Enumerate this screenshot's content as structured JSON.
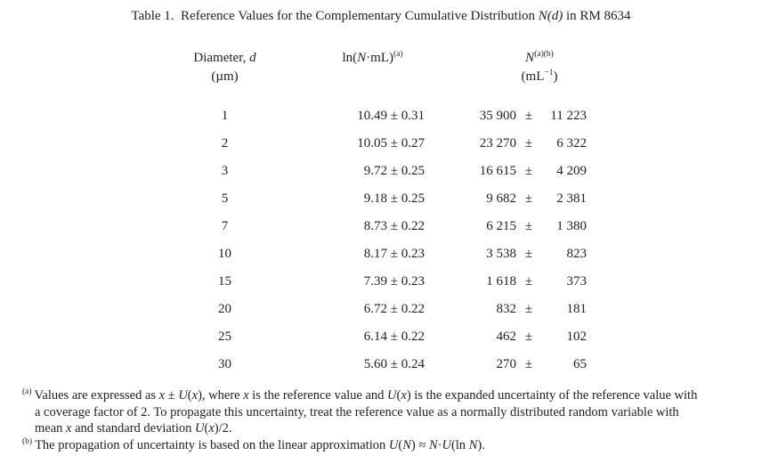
{
  "page": {
    "background_color": "#ffffff",
    "text_color": "#1f1f1f"
  },
  "title": {
    "text": "Table 1.  Reference Values for the Complementary Cumulative Distribution N(d) in RM 8634",
    "segments": [
      {
        "t": "Table 1.  Reference Values for the Complementary Cumulative Distribution "
      },
      {
        "t": "N(d)",
        "i": true
      },
      {
        "t": " in RM 8634"
      }
    ]
  },
  "table": {
    "pm_symbol": "±",
    "headers": {
      "diameter": {
        "line1": [
          {
            "t": "Diameter, "
          },
          {
            "t": "d",
            "i": true
          }
        ],
        "line2": [
          {
            "t": "(µm)"
          }
        ]
      },
      "ln_n": {
        "line1": [
          {
            "t": "ln("
          },
          {
            "t": "N",
            "i": true
          },
          {
            "t": "·mL)"
          },
          {
            "t": "(a)",
            "sup": true
          }
        ]
      },
      "n": {
        "line1": [
          {
            "t": "N",
            "i": true
          },
          {
            "t": "(a)(b)",
            "sup": true
          }
        ],
        "line2": [
          {
            "t": "(mL"
          },
          {
            "t": "−1",
            "sup": true
          },
          {
            "t": ")"
          }
        ]
      }
    },
    "rows": [
      {
        "d": "1",
        "ln": "10.49 ± 0.31",
        "n": "35 900",
        "u": "11 223"
      },
      {
        "d": "2",
        "ln": "10.05 ± 0.27",
        "n": "23 270",
        "u": "6 322"
      },
      {
        "d": "3",
        "ln": "9.72 ± 0.25",
        "n": "16 615",
        "u": "4 209"
      },
      {
        "d": "5",
        "ln": "9.18 ± 0.25",
        "n": "9 682",
        "u": "2 381"
      },
      {
        "d": "7",
        "ln": "8.73 ± 0.22",
        "n": "6 215",
        "u": "1 380"
      },
      {
        "d": "10",
        "ln": "8.17 ± 0.23",
        "n": "3 538",
        "u": "823"
      },
      {
        "d": "15",
        "ln": "7.39 ± 0.23",
        "n": "1 618",
        "u": "373"
      },
      {
        "d": "20",
        "ln": "6.72 ± 0.22",
        "n": "832",
        "u": "181"
      },
      {
        "d": "25",
        "ln": "6.14 ± 0.22",
        "n": "462",
        "u": "102"
      },
      {
        "d": "30",
        "ln": "5.60 ± 0.24",
        "n": "270",
        "u": "65"
      }
    ]
  },
  "footnotes": [
    {
      "marker": "(a)",
      "lines": [
        [
          {
            "t": "Values are expressed as "
          },
          {
            "t": "x",
            "i": true
          },
          {
            "t": " ± "
          },
          {
            "t": "U",
            "i": true
          },
          {
            "t": "("
          },
          {
            "t": "x",
            "i": true
          },
          {
            "t": "), where "
          },
          {
            "t": "x",
            "i": true
          },
          {
            "t": " is the reference value and "
          },
          {
            "t": "U",
            "i": true
          },
          {
            "t": "("
          },
          {
            "t": "x",
            "i": true
          },
          {
            "t": ") is the expanded uncertainty of the reference value with"
          }
        ],
        [
          {
            "t": "a coverage factor of 2. To propagate this uncertainty, treat the reference value as a normally distributed random variable with"
          }
        ],
        [
          {
            "t": "mean "
          },
          {
            "t": "x",
            "i": true
          },
          {
            "t": " and standard deviation "
          },
          {
            "t": "U",
            "i": true
          },
          {
            "t": "("
          },
          {
            "t": "x",
            "i": true
          },
          {
            "t": ")/2."
          }
        ]
      ]
    },
    {
      "marker": "(b)",
      "lines": [
        [
          {
            "t": "The propagation of uncertainty is based on the linear approximation "
          },
          {
            "t": "U",
            "i": true
          },
          {
            "t": "("
          },
          {
            "t": "N",
            "i": true
          },
          {
            "t": ") ≈ "
          },
          {
            "t": "N",
            "i": true
          },
          {
            "t": "·"
          },
          {
            "t": "U",
            "i": true
          },
          {
            "t": "(ln "
          },
          {
            "t": "N",
            "i": true
          },
          {
            "t": ")."
          }
        ]
      ]
    }
  ]
}
